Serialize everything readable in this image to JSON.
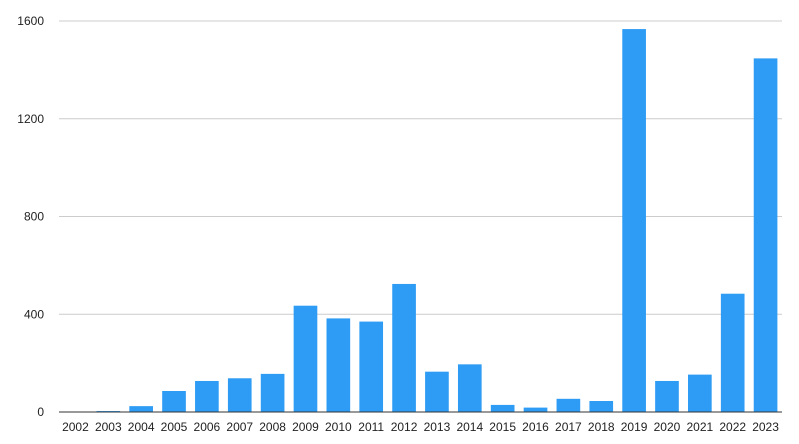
{
  "chart_data": {
    "type": "bar",
    "title": "",
    "xlabel": "",
    "ylabel": "",
    "categories": [
      "2002",
      "2003",
      "2004",
      "2005",
      "2006",
      "2007",
      "2008",
      "2009",
      "2010",
      "2011",
      "2012",
      "2013",
      "2014",
      "2015",
      "2016",
      "2017",
      "2018",
      "2019",
      "2020",
      "2021",
      "2022",
      "2023"
    ],
    "values": [
      1,
      4,
      24,
      86,
      127,
      138,
      156,
      435,
      383,
      370,
      524,
      165,
      195,
      29,
      18,
      54,
      45,
      1567,
      127,
      153,
      484,
      1447
    ],
    "ylim": [
      0,
      1600
    ],
    "yticks": [
      0,
      400,
      800,
      1200,
      1600
    ],
    "grid": true,
    "bar_color": "#2e9cf4",
    "legend": "none"
  }
}
